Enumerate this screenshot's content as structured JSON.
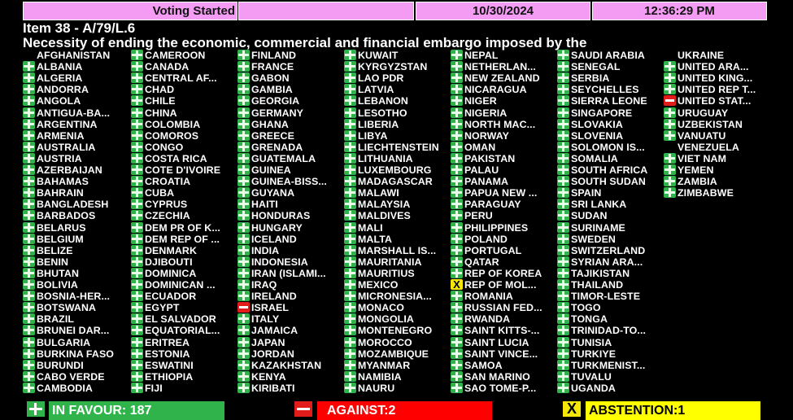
{
  "header": {
    "status": "Voting Started",
    "blank": "",
    "date": "10/30/2024",
    "time": "12:36:29 PM"
  },
  "item": {
    "number": "Item 38 - A/79/L.6",
    "title": "Necessity of ending the economic, commercial and financial embargo imposed by the"
  },
  "colors": {
    "yes": "#2fb34a",
    "no": "#e21b1b",
    "abstain": "#f5e60a",
    "header": "#f49cf4"
  },
  "vote_legend": {
    "Y": "in-favour",
    "N": "against",
    "A": "abstention",
    "": "not-voting"
  },
  "columns": [
    [
      [
        "AFGHANISTAN",
        ""
      ],
      [
        "ALBANIA",
        "Y"
      ],
      [
        "ALGERIA",
        "Y"
      ],
      [
        "ANDORRA",
        "Y"
      ],
      [
        "ANGOLA",
        "Y"
      ],
      [
        "ANTIGUA-BA...",
        "Y"
      ],
      [
        "ARGENTINA",
        "Y"
      ],
      [
        "ARMENIA",
        "Y"
      ],
      [
        "AUSTRALIA",
        "Y"
      ],
      [
        "AUSTRIA",
        "Y"
      ],
      [
        "AZERBAIJAN",
        "Y"
      ],
      [
        "BAHAMAS",
        "Y"
      ],
      [
        "BAHRAIN",
        "Y"
      ],
      [
        "BANGLADESH",
        "Y"
      ],
      [
        "BARBADOS",
        "Y"
      ],
      [
        "BELARUS",
        "Y"
      ],
      [
        "BELGIUM",
        "Y"
      ],
      [
        "BELIZE",
        "Y"
      ],
      [
        "BENIN",
        "Y"
      ],
      [
        "BHUTAN",
        "Y"
      ],
      [
        "BOLIVIA",
        "Y"
      ],
      [
        "BOSNIA-HER...",
        "Y"
      ],
      [
        "BOTSWANA",
        "Y"
      ],
      [
        "BRAZIL",
        "Y"
      ],
      [
        "BRUNEI DAR...",
        "Y"
      ],
      [
        "BULGARIA",
        "Y"
      ],
      [
        "BURKINA FASO",
        "Y"
      ],
      [
        "BURUNDI",
        "Y"
      ],
      [
        "CABO VERDE",
        "Y"
      ],
      [
        "CAMBODIA",
        "Y"
      ]
    ],
    [
      [
        "CAMEROON",
        "Y"
      ],
      [
        "CANADA",
        "Y"
      ],
      [
        "CENTRAL AF...",
        "Y"
      ],
      [
        "CHAD",
        "Y"
      ],
      [
        "CHILE",
        "Y"
      ],
      [
        "CHINA",
        "Y"
      ],
      [
        "COLOMBIA",
        "Y"
      ],
      [
        "COMOROS",
        "Y"
      ],
      [
        "CONGO",
        "Y"
      ],
      [
        "COSTA RICA",
        "Y"
      ],
      [
        "COTE D'IVOIRE",
        "Y"
      ],
      [
        "CROATIA",
        "Y"
      ],
      [
        "CUBA",
        "Y"
      ],
      [
        "CYPRUS",
        "Y"
      ],
      [
        "CZECHIA",
        "Y"
      ],
      [
        "DEM PR OF K...",
        "Y"
      ],
      [
        "DEM REP OF ...",
        "Y"
      ],
      [
        "DENMARK",
        "Y"
      ],
      [
        "DJIBOUTI",
        "Y"
      ],
      [
        "DOMINICA",
        "Y"
      ],
      [
        "DOMINICAN ...",
        "Y"
      ],
      [
        "ECUADOR",
        "Y"
      ],
      [
        "EGYPT",
        "Y"
      ],
      [
        "EL SALVADOR",
        "Y"
      ],
      [
        "EQUATORIAL...",
        "Y"
      ],
      [
        "ERITREA",
        "Y"
      ],
      [
        "ESTONIA",
        "Y"
      ],
      [
        "ESWATINI",
        "Y"
      ],
      [
        "ETHIOPIA",
        "Y"
      ],
      [
        "FIJI",
        "Y"
      ]
    ],
    [
      [
        "FINLAND",
        "Y"
      ],
      [
        "FRANCE",
        "Y"
      ],
      [
        "GABON",
        "Y"
      ],
      [
        "GAMBIA",
        "Y"
      ],
      [
        "GEORGIA",
        "Y"
      ],
      [
        "GERMANY",
        "Y"
      ],
      [
        "GHANA",
        "Y"
      ],
      [
        "GREECE",
        "Y"
      ],
      [
        "GRENADA",
        "Y"
      ],
      [
        "GUATEMALA",
        "Y"
      ],
      [
        "GUINEA",
        "Y"
      ],
      [
        "GUINEA-BISS...",
        "Y"
      ],
      [
        "GUYANA",
        "Y"
      ],
      [
        "HAITI",
        "Y"
      ],
      [
        "HONDURAS",
        "Y"
      ],
      [
        "HUNGARY",
        "Y"
      ],
      [
        "ICELAND",
        "Y"
      ],
      [
        "INDIA",
        "Y"
      ],
      [
        "INDONESIA",
        "Y"
      ],
      [
        "IRAN (ISLAMI...",
        "Y"
      ],
      [
        "IRAQ",
        "Y"
      ],
      [
        "IRELAND",
        "Y"
      ],
      [
        "ISRAEL",
        "N"
      ],
      [
        "ITALY",
        "Y"
      ],
      [
        "JAMAICA",
        "Y"
      ],
      [
        "JAPAN",
        "Y"
      ],
      [
        "JORDAN",
        "Y"
      ],
      [
        "KAZAKHSTAN",
        "Y"
      ],
      [
        "KENYA",
        "Y"
      ],
      [
        "KIRIBATI",
        "Y"
      ]
    ],
    [
      [
        "KUWAIT",
        "Y"
      ],
      [
        "KYRGYZSTAN",
        "Y"
      ],
      [
        "LAO PDR",
        "Y"
      ],
      [
        "LATVIA",
        "Y"
      ],
      [
        "LEBANON",
        "Y"
      ],
      [
        "LESOTHO",
        "Y"
      ],
      [
        "LIBERIA",
        "Y"
      ],
      [
        "LIBYA",
        "Y"
      ],
      [
        "LIECHTENSTEIN",
        "Y"
      ],
      [
        "LITHUANIA",
        "Y"
      ],
      [
        "LUXEMBOURG",
        "Y"
      ],
      [
        "MADAGASCAR",
        "Y"
      ],
      [
        "MALAWI",
        "Y"
      ],
      [
        "MALAYSIA",
        "Y"
      ],
      [
        "MALDIVES",
        "Y"
      ],
      [
        "MALI",
        "Y"
      ],
      [
        "MALTA",
        "Y"
      ],
      [
        "MARSHALL IS...",
        "Y"
      ],
      [
        "MAURITANIA",
        "Y"
      ],
      [
        "MAURITIUS",
        "Y"
      ],
      [
        "MEXICO",
        "Y"
      ],
      [
        "MICRONESIA...",
        "Y"
      ],
      [
        "MONACO",
        "Y"
      ],
      [
        "MONGOLIA",
        "Y"
      ],
      [
        "MONTENEGRO",
        "Y"
      ],
      [
        "MOROCCO",
        "Y"
      ],
      [
        "MOZAMBIQUE",
        "Y"
      ],
      [
        "MYANMAR",
        "Y"
      ],
      [
        "NAMIBIA",
        "Y"
      ],
      [
        "NAURU",
        "Y"
      ]
    ],
    [
      [
        "NEPAL",
        "Y"
      ],
      [
        "NETHERLAN...",
        "Y"
      ],
      [
        "NEW ZEALAND",
        "Y"
      ],
      [
        "NICARAGUA",
        "Y"
      ],
      [
        "NIGER",
        "Y"
      ],
      [
        "NIGERIA",
        "Y"
      ],
      [
        "NORTH MAC...",
        "Y"
      ],
      [
        "NORWAY",
        "Y"
      ],
      [
        "OMAN",
        "Y"
      ],
      [
        "PAKISTAN",
        "Y"
      ],
      [
        "PALAU",
        "Y"
      ],
      [
        "PANAMA",
        "Y"
      ],
      [
        "PAPUA NEW ...",
        "Y"
      ],
      [
        "PARAGUAY",
        "Y"
      ],
      [
        "PERU",
        "Y"
      ],
      [
        "PHILIPPINES",
        "Y"
      ],
      [
        "POLAND",
        "Y"
      ],
      [
        "PORTUGAL",
        "Y"
      ],
      [
        "QATAR",
        "Y"
      ],
      [
        "REP OF KOREA",
        "Y"
      ],
      [
        "REP OF MOL...",
        "A"
      ],
      [
        "ROMANIA",
        "Y"
      ],
      [
        "RUSSIAN FED...",
        "Y"
      ],
      [
        "RWANDA",
        "Y"
      ],
      [
        "SAINT KITTS-...",
        "Y"
      ],
      [
        "SAINT LUCIA",
        "Y"
      ],
      [
        "SAINT VINCE...",
        "Y"
      ],
      [
        "SAMOA",
        "Y"
      ],
      [
        "SAN MARINO",
        "Y"
      ],
      [
        "SAO TOME-P...",
        "Y"
      ]
    ],
    [
      [
        "SAUDI ARABIA",
        "Y"
      ],
      [
        "SENEGAL",
        "Y"
      ],
      [
        "SERBIA",
        "Y"
      ],
      [
        "SEYCHELLES",
        "Y"
      ],
      [
        "SIERRA LEONE",
        "Y"
      ],
      [
        "SINGAPORE",
        "Y"
      ],
      [
        "SLOVAKIA",
        "Y"
      ],
      [
        "SLOVENIA",
        "Y"
      ],
      [
        "SOLOMON IS...",
        "Y"
      ],
      [
        "SOMALIA",
        "Y"
      ],
      [
        "SOUTH AFRICA",
        "Y"
      ],
      [
        "SOUTH SUDAN",
        "Y"
      ],
      [
        "SPAIN",
        "Y"
      ],
      [
        "SRI LANKA",
        "Y"
      ],
      [
        "SUDAN",
        "Y"
      ],
      [
        "SURINAME",
        "Y"
      ],
      [
        "SWEDEN",
        "Y"
      ],
      [
        "SWITZERLAND",
        "Y"
      ],
      [
        "SYRIAN ARA...",
        "Y"
      ],
      [
        "TAJIKISTAN",
        "Y"
      ],
      [
        "THAILAND",
        "Y"
      ],
      [
        "TIMOR-LESTE",
        "Y"
      ],
      [
        "TOGO",
        "Y"
      ],
      [
        "TONGA",
        "Y"
      ],
      [
        "TRINIDAD-TO...",
        "Y"
      ],
      [
        "TUNISIA",
        "Y"
      ],
      [
        "TURKIYE",
        "Y"
      ],
      [
        "TURKMENIST...",
        "Y"
      ],
      [
        "TUVALU",
        "Y"
      ],
      [
        "UGANDA",
        "Y"
      ]
    ],
    [
      [
        "UKRAINE",
        ""
      ],
      [
        "UNITED ARA...",
        "Y"
      ],
      [
        "UNITED KING...",
        "Y"
      ],
      [
        "UNITED REP T...",
        "Y"
      ],
      [
        "UNITED STAT...",
        "N"
      ],
      [
        "URUGUAY",
        "Y"
      ],
      [
        "UZBEKISTAN",
        "Y"
      ],
      [
        "VANUATU",
        "Y"
      ],
      [
        "VENEZUELA",
        ""
      ],
      [
        "VIET NAM",
        "Y"
      ],
      [
        "YEMEN",
        "Y"
      ],
      [
        "ZAMBIA",
        "Y"
      ],
      [
        "ZIMBABWE",
        "Y"
      ]
    ]
  ],
  "totals": {
    "in_favour": "IN FAVOUR: 187",
    "against": "AGAINST:2",
    "abstention": "ABSTENTION:1",
    "abstain_icon_glyph": "X"
  }
}
